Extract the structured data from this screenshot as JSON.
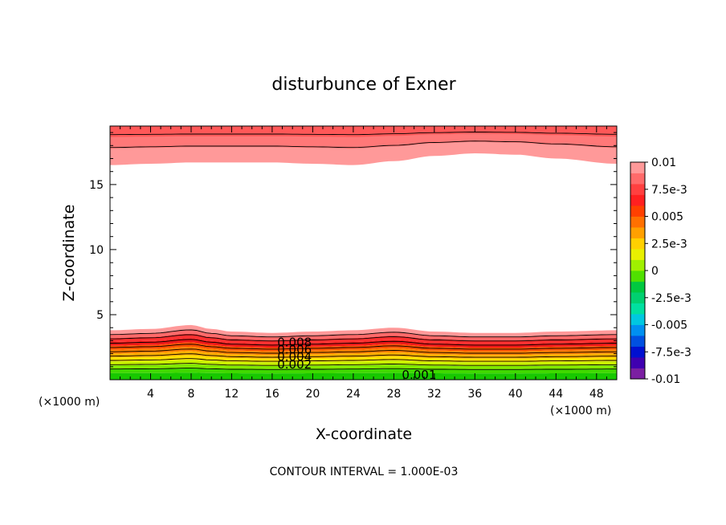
{
  "chart_data": {
    "type": "contour",
    "title": "disturbunce of Exner",
    "xlabel": "X-coordinate",
    "ylabel": "Z-coordinate",
    "xunit": "(×1000 m)",
    "yunit": "(×1000 m)",
    "xlim": [
      0,
      50
    ],
    "ylim": [
      0,
      19.5
    ],
    "xticks": [
      4,
      8,
      12,
      16,
      20,
      24,
      28,
      32,
      36,
      40,
      44,
      48
    ],
    "yticks": [
      5,
      10,
      15
    ],
    "footer": "CONTOUR INTERVAL = 1.000E-03",
    "contour_interval": 0.001,
    "contour_labels": [
      "0.008",
      "0.006",
      "0.004",
      "0.002",
      "0.001"
    ],
    "colorbar": {
      "labels": [
        "0.01",
        "7.5e-3",
        "0.005",
        "2.5e-3",
        "0",
        "-2.5e-3",
        "-0.005",
        "-7.5e-3",
        "-0.01"
      ],
      "range": [
        -0.01,
        0.01
      ],
      "colors": [
        "#7b1fa2",
        "#3f00b0",
        "#0010d0",
        "#0050e0",
        "#0090f0",
        "#00c8e0",
        "#00e0a0",
        "#00d070",
        "#00c840",
        "#50e000",
        "#a0f000",
        "#e8f000",
        "#ffd000",
        "#ffa000",
        "#ff7000",
        "#ff4000",
        "#ff2020",
        "#ff4040",
        "#ff6a6a",
        "#ff9999"
      ]
    },
    "bottom_layer": {
      "x": [
        0,
        4,
        8,
        10,
        12,
        16,
        20,
        24,
        28,
        32,
        36,
        40,
        44,
        50
      ],
      "top_height": [
        3.8,
        3.9,
        4.2,
        3.9,
        3.7,
        3.6,
        3.7,
        3.8,
        4.0,
        3.7,
        3.6,
        3.6,
        3.7,
        3.8
      ]
    },
    "top_layer": {
      "x": [
        0,
        4,
        8,
        12,
        16,
        20,
        24,
        28,
        32,
        36,
        40,
        44,
        50
      ],
      "bottom_height": [
        16.5,
        16.6,
        16.7,
        16.7,
        16.7,
        16.6,
        16.5,
        16.8,
        17.2,
        17.4,
        17.3,
        17.0,
        16.6
      ]
    }
  }
}
